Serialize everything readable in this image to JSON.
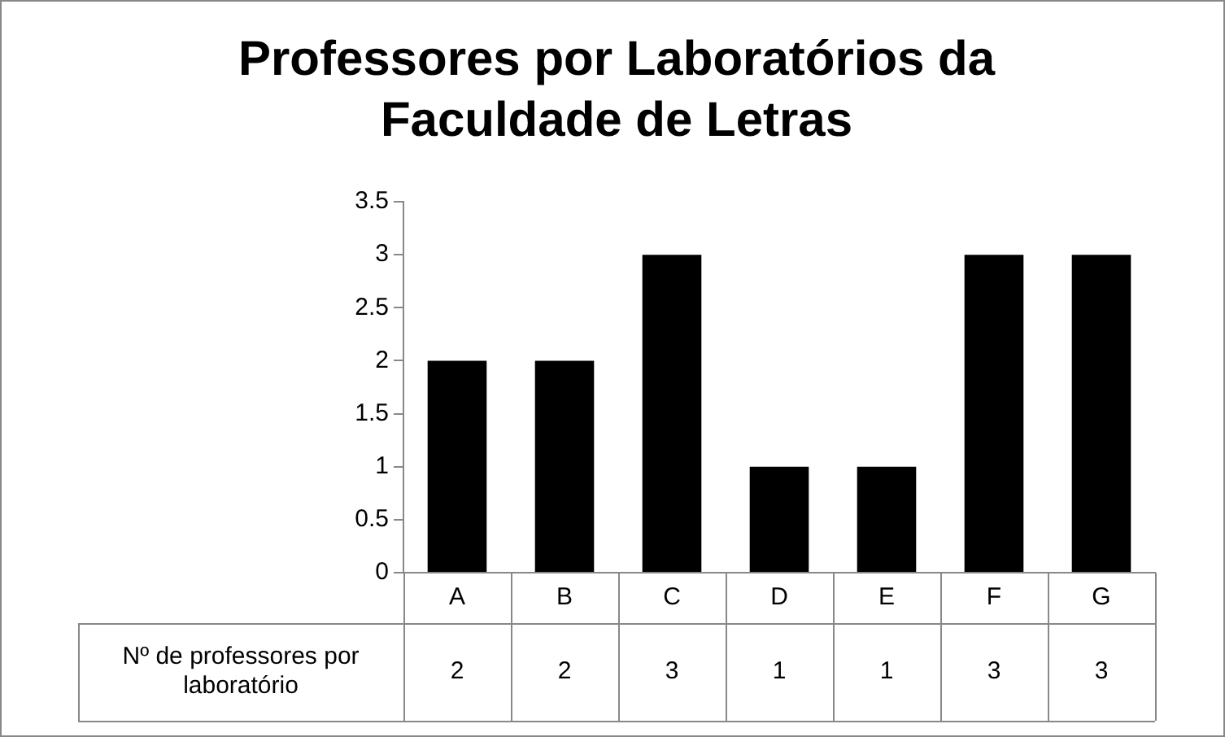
{
  "chart_data": {
    "type": "bar",
    "title": "Professores por Laboratórios da\nFaculdade de Letras",
    "categories": [
      "A",
      "B",
      "C",
      "D",
      "E",
      "F",
      "G"
    ],
    "series": [
      {
        "name": "Nº de professores por laboratório",
        "color": "#000000",
        "values": [
          2,
          2,
          3,
          1,
          1,
          3,
          3
        ]
      }
    ],
    "ylim": [
      0,
      3.5
    ],
    "yticks": [
      0,
      0.5,
      1,
      1.5,
      2,
      2.5,
      3,
      3.5
    ],
    "grid": false,
    "legend": false,
    "data_labels": true
  }
}
